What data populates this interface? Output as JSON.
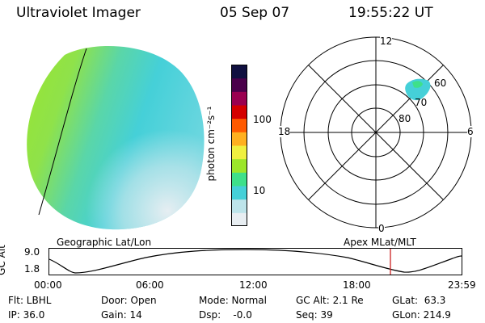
{
  "header": {
    "instrument": "Ultraviolet Imager",
    "date": "05 Sep 07",
    "time": "19:55:22 UT"
  },
  "colorbar": {
    "unit_label": "photon cm⁻²s⁻¹",
    "ticks": [
      "100",
      "10"
    ],
    "colors": [
      "#e8eef2",
      "#bde4ea",
      "#45d0d8",
      "#3ee08a",
      "#9ce62a",
      "#f0f040",
      "#ffb020",
      "#ff5a00",
      "#d40000",
      "#9a0050",
      "#4a004a",
      "#101040"
    ]
  },
  "polar_plot": {
    "mlt_labels": {
      "top": "12",
      "left": "18",
      "right": "6",
      "bottom": "0"
    },
    "lat_labels": [
      "60",
      "70",
      "80"
    ]
  },
  "altitude_panel": {
    "left_title": "Geographic Lat/Lon",
    "right_title": "Apex MLat/MLT",
    "axis_label": "GC Alt",
    "y_ticks": [
      "9.0",
      "1.8"
    ],
    "x_ticks": [
      "00:00",
      "06:00",
      "12:00",
      "18:00",
      "23:59"
    ],
    "marker_color": "#cc2222"
  },
  "footer": {
    "col1": [
      "Flt: LBHL",
      "IP: 36.0"
    ],
    "col2": [
      "Door: Open",
      "Gain: 14"
    ],
    "col3": [
      "Mode: Normal",
      "Dsp:    -0.0"
    ],
    "col4": [
      "GC Alt: 2.1 Re",
      "Seq: 39"
    ],
    "col5": [
      "GLat:  63.3",
      "GLon: 214.9"
    ]
  }
}
